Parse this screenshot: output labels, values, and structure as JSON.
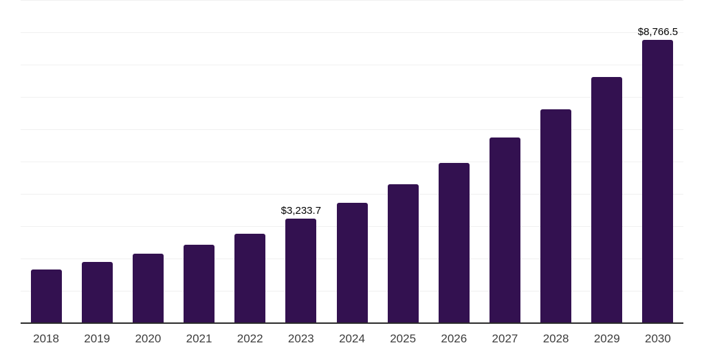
{
  "chart_data": {
    "type": "bar",
    "title": "",
    "xlabel": "",
    "ylabel": "",
    "categories": [
      "2018",
      "2019",
      "2020",
      "2021",
      "2022",
      "2023",
      "2024",
      "2025",
      "2026",
      "2027",
      "2028",
      "2029",
      "2030"
    ],
    "values": [
      1670,
      1890,
      2140,
      2430,
      2770,
      3233.7,
      3720,
      4290,
      4960,
      5740,
      6620,
      7620,
      8766.5
    ],
    "value_labels": {
      "2023": "$3,233.7",
      "2030": "$8,766.5"
    },
    "ylim": [
      0,
      10000
    ],
    "gridline_step": 1000,
    "grid": "horizontal-only",
    "y_axis_tick_labels": "none",
    "legend": "none",
    "colors": {
      "bar_fill": "#331150",
      "axis_line": "#2b2b2b",
      "gridline": "#f0f0f0",
      "tick_label": "#3d3d3d",
      "value_label": "#000000",
      "background": "#ffffff"
    }
  }
}
